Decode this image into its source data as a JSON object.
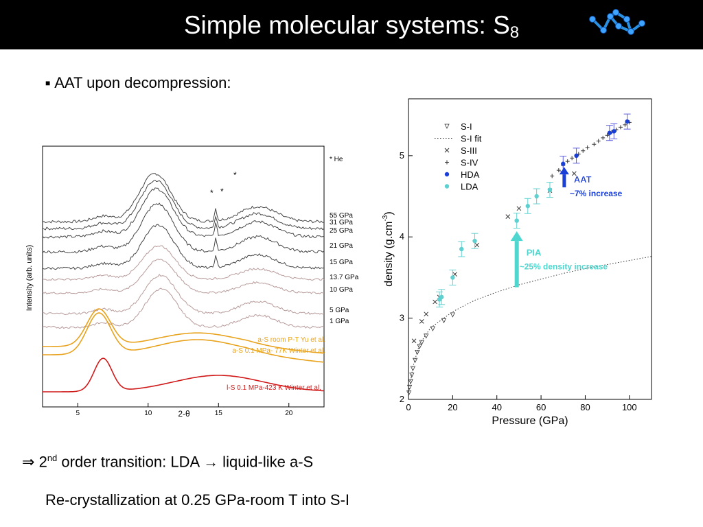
{
  "slide": {
    "title": "Simple molecular systems: S",
    "title_sub": "8",
    "bullet": "AAT upon decompression:",
    "conclusion_arrow": "⇒",
    "conclusion_num": "2",
    "conclusion_sup": "nd",
    "conclusion_text": "order transition: LDA → liquid-like a-S",
    "note": "Re-crystallization at 0.25 GPa-room T into S-I"
  },
  "left_chart": {
    "chart_data": {
      "type": "line",
      "xlabel": "2-θ",
      "ylabel": "Intensity (arb. units)",
      "x_ticks": [
        "5",
        "10",
        "15",
        "20"
      ],
      "xlim": [
        2.5,
        22.5
      ],
      "he_marker": "* He",
      "series": [
        {
          "name": "55 GPa",
          "color": "#444444"
        },
        {
          "name": "31 GPa",
          "color": "#444444"
        },
        {
          "name": "25 GPa",
          "color": "#444444"
        },
        {
          "name": "21 GPa",
          "color": "#444444"
        },
        {
          "name": "15 GPa",
          "color": "#444444"
        },
        {
          "name": "13.7 GPa",
          "color": "#b89a9a"
        },
        {
          "name": "10 GPa",
          "color": "#b89a9a"
        },
        {
          "name": "5 GPa",
          "color": "#b89a9a"
        },
        {
          "name": "1 GPa",
          "color": "#b89a9a"
        },
        {
          "name": "a-S room P-T Yu et al.",
          "color": "#e8a21c"
        },
        {
          "name": "a-S 0.1 MPa- 77K Winter et al.",
          "color": "#e8a21c"
        },
        {
          "name": "l-S 0.1 MPa-423 K Winter et al.",
          "color": "#d01818"
        }
      ]
    }
  },
  "right_chart": {
    "chart_data": {
      "type": "scatter",
      "xlabel": "Pressure (GPa)",
      "ylabel": "density (g.cm",
      "ylabel_sup": "-3",
      "ylabel_end": ")",
      "xlim": [
        0,
        110
      ],
      "ylim": [
        2,
        5.7
      ],
      "x_ticks": [
        "0",
        "20",
        "40",
        "60",
        "80",
        "100"
      ],
      "y_ticks": [
        "2",
        "3",
        "4",
        "5"
      ],
      "legend_position": "top-left",
      "legend": [
        "S-I",
        "S-I fit",
        "S-III",
        "S-IV",
        "HDA",
        "LDA"
      ],
      "series": [
        {
          "name": "S-I",
          "marker": "triangle-down",
          "color": "#333333",
          "x": [
            0.2,
            0.5,
            1,
            1.5,
            2,
            3,
            4,
            5,
            6,
            8,
            11,
            16,
            20
          ],
          "y": [
            2.08,
            2.15,
            2.22,
            2.3,
            2.38,
            2.48,
            2.58,
            2.65,
            2.7,
            2.78,
            2.87,
            2.97,
            3.04
          ]
        },
        {
          "name": "S-I fit",
          "style": "dotted",
          "color": "#333333",
          "x": [
            0,
            2,
            5,
            10,
            20,
            30,
            40,
            50,
            60,
            70,
            80,
            90,
            100,
            110
          ],
          "y": [
            2.06,
            2.4,
            2.68,
            2.88,
            3.08,
            3.22,
            3.32,
            3.41,
            3.48,
            3.55,
            3.61,
            3.66,
            3.71,
            3.76
          ]
        },
        {
          "name": "S-III",
          "marker": "x",
          "color": "#333333",
          "x": [
            2.5,
            6,
            8,
            12,
            14,
            21,
            31,
            45,
            50,
            64,
            75
          ],
          "y": [
            2.72,
            2.96,
            3.05,
            3.2,
            3.26,
            3.54,
            3.9,
            4.25,
            4.35,
            4.57,
            4.78
          ]
        },
        {
          "name": "S-IV",
          "marker": "plus",
          "color": "#333333",
          "x": [
            65,
            68,
            70,
            72,
            74,
            77,
            79,
            81,
            84,
            86,
            88,
            90,
            92,
            94,
            96,
            98,
            100
          ],
          "y": [
            4.75,
            4.82,
            4.88,
            4.93,
            4.97,
            5.02,
            5.06,
            5.1,
            5.14,
            5.18,
            5.22,
            5.25,
            5.29,
            5.32,
            5.35,
            5.38,
            5.41
          ]
        },
        {
          "name": "HDA",
          "marker": "circle",
          "color": "#1a3fd6",
          "x": [
            70,
            76,
            91,
            93,
            99
          ],
          "y": [
            4.9,
            5.0,
            5.28,
            5.3,
            5.42
          ]
        },
        {
          "name": "LDA",
          "marker": "circle",
          "color": "#5fd0d0",
          "x": [
            14,
            15,
            20,
            24,
            30,
            49,
            54,
            58,
            64
          ],
          "y": [
            3.23,
            3.26,
            3.5,
            3.85,
            3.95,
            4.2,
            4.38,
            4.5,
            4.58
          ]
        }
      ],
      "annotations": [
        {
          "text": "AAT",
          "text2": "~7% increase",
          "color": "#1a3fd6"
        },
        {
          "text": "PIA",
          "text2": "~25% density increase",
          "color": "#4fd6cf"
        }
      ]
    }
  },
  "logo": {
    "name": "s8-molecule",
    "color": "#2a8fe0"
  }
}
